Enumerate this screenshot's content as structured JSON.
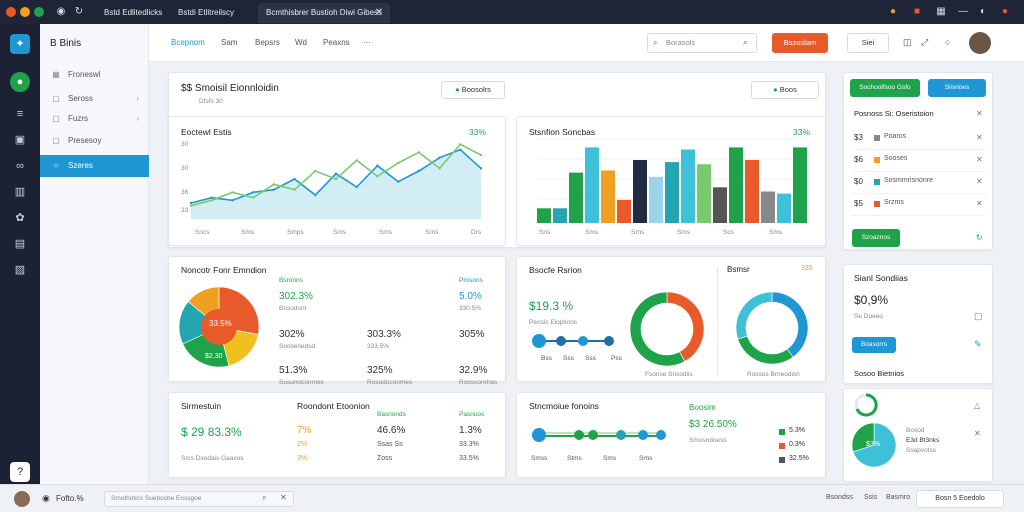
{
  "browser": {
    "tabs": [
      {
        "label": "Bstd Edlitedlicks"
      },
      {
        "label": "Bstdi Etlitreilscy"
      },
      {
        "label": "Bcmthisbrer Bustioh Diwi Gibess"
      }
    ]
  },
  "sidebar": {
    "brand": "B Binis",
    "items": [
      {
        "label": "Froneswl",
        "icon": "grid-icon"
      },
      {
        "label": "Seross",
        "icon": "square-icon",
        "chevron": true
      },
      {
        "label": "Fuzrs",
        "icon": "square-icon",
        "chevron": true
      },
      {
        "label": "Presesoy",
        "icon": "square-icon"
      },
      {
        "label": "Szeres",
        "icon": "circle-icon",
        "active": true
      }
    ]
  },
  "topnav": {
    "links": [
      "Bcepnom",
      "Sam",
      "Bepsrs",
      "Wd",
      "Peaxns"
    ],
    "search_placeholder": "Borasols",
    "primary_button": "Bszoslam",
    "secondary_button": "Siei"
  },
  "card_sales": {
    "title": "$$  Smoisil Eionnloidin",
    "subtitle": "Dfsfs  30",
    "button": "Boosolrs"
  },
  "chart_line": {
    "title": "Eoctewl Estis",
    "pct": "33%",
    "ylabels": [
      "30",
      "30",
      "36",
      "33"
    ],
    "xlabels": [
      "Sncs",
      "Sms",
      "Smps",
      "Sms",
      "Sms",
      "Srns",
      "Drs"
    ]
  },
  "chart_bar": {
    "title": "Stsnfion Soncbas",
    "pct": "33%",
    "button": "Boos",
    "xlabels": [
      "Sns",
      "Sms",
      "Srns",
      "Sms",
      "Scs",
      "Sms"
    ]
  },
  "card_pie": {
    "title": "Noncotr Fonr Emndion",
    "center": "33.5%",
    "inner": "$2.30",
    "metrics": [
      {
        "label": "Bsronns",
        "value": "302.3%",
        "sub": "Bosodonr",
        "color": "#1fa34a"
      },
      {
        "label": "Prosons",
        "value": "5.0%",
        "sub": "330.5%",
        "color": "#1e97d4"
      },
      {
        "label": "",
        "value": "302%",
        "sub": "Soosenedsd",
        "color": "#e85a2a"
      },
      {
        "label": "",
        "value": "303.3%",
        "sub": "333.5%",
        "color": "#333"
      },
      {
        "label": "",
        "value": "51.3%",
        "sub": "Susunoconmes",
        "color": "#333"
      },
      {
        "label": "",
        "value": "325%",
        "sub": "Rosodoconmes",
        "color": "#333"
      },
      {
        "label": "",
        "value": "32.9%",
        "sub": "Roossonrhas",
        "color": "#333"
      },
      {
        "label": "",
        "value": "305%",
        "sub": "",
        "color": "#333"
      }
    ]
  },
  "card_donut": {
    "title": "Bsocfe Rsrion",
    "value": "$19.3 %",
    "value_sub": "Peosis Eloptions",
    "right_title": "Bsmsr",
    "right_pct": "335",
    "donut1_label": "Fsonse Snsodlis",
    "donut1_sub": "Bd",
    "donut2_label": "Rossos Brneodisn",
    "bubble_labels": [
      "Bss",
      "Sss",
      "Sss",
      "Pss"
    ]
  },
  "card_stats": {
    "title": "Sirmestuin",
    "title2": "Roondont Etoonion",
    "value": "$ 29 83.3%",
    "value_color": "#1fa34a",
    "sub": "Srcs  Dsodais  Gaaxos",
    "cols": [
      {
        "head": "",
        "a": "7%",
        "b": "2%",
        "c": "3%"
      },
      {
        "head": "Basnonds",
        "a": "46.6%",
        "b": "Ssas Ss",
        "c": "Zoss"
      },
      {
        "head": "Pasnuos",
        "a": "1.3%",
        "b": "33.3%",
        "c": "33.5%"
      }
    ]
  },
  "card_flow": {
    "title": "Stncmoiue fonoins",
    "value_title": "Boosim",
    "value": "$3 26.50%",
    "value_sub": "Smosndoess",
    "legend": [
      {
        "label": "5.3%",
        "color": "#1fa34a"
      },
      {
        "label": "0.3%",
        "color": "#e85a2a"
      },
      {
        "label": "32.5%",
        "color": "#555"
      }
    ],
    "xlabels": [
      "Smss",
      "Stms",
      "Sms",
      "Srns"
    ]
  },
  "right_panel": {
    "btn_green": "Sochoolfsoo Gsfo",
    "btn_blue": "Siisrioes",
    "list_title": "Posnoss Si: Oseristoion",
    "rows": [
      {
        "n": "$3",
        "label": "Poaros",
        "color": "#888"
      },
      {
        "n": "$6",
        "label": "Sooses",
        "color": "#f0a020"
      },
      {
        "n": "$0",
        "label": "Sosmmrisnonre",
        "color": "#25a5b0"
      },
      {
        "n": "$5",
        "label": "Srzms",
        "color": "#e85a2a"
      }
    ],
    "green_button": "Szoaznos",
    "stat_title": "Sianl Sondiias",
    "stat_value": "$0,9%",
    "stat_sub": "Se  Dueeo",
    "stat_button": "Boasorrs",
    "stat2_title": "Sosoo Bietnios",
    "donut_value": "$3%",
    "donut_label": "Bosod",
    "donut_sub": "E3d  Bt3nks",
    "donut_sub2": "Ssapvotss"
  },
  "footer": {
    "user": "Fofto.%",
    "search": "Smothotics  Suebosbe  Enssgoe",
    "links": [
      "Bsondss",
      "Ssis",
      "Basmro"
    ],
    "button": "Bosn  5  Eoedolo"
  },
  "chart_data": [
    {
      "type": "area",
      "title": "Eoctewl Estis",
      "series": [
        {
          "values": [
            12,
            16,
            14,
            20,
            22,
            30,
            18,
            34,
            24,
            40,
            28,
            36,
            46,
            52,
            38
          ]
        },
        {
          "values": [
            10,
            14,
            20,
            16,
            26,
            22,
            36,
            30,
            44,
            32,
            42,
            50,
            38,
            56,
            48
          ]
        }
      ]
    },
    {
      "type": "bar",
      "title": "Stsnfion Soncbas",
      "values": [
        {
          "v": 14,
          "c": "#1fa34a"
        },
        {
          "v": 14,
          "c": "#25a5b0"
        },
        {
          "v": 48,
          "c": "#1fa34a"
        },
        {
          "v": 72,
          "c": "#3ec0d8"
        },
        {
          "v": 50,
          "c": "#f0a020"
        },
        {
          "v": 22,
          "c": "#e85a2a"
        },
        {
          "v": 60,
          "c": "#1f2b40"
        },
        {
          "v": 44,
          "c": "#9bd3e8"
        },
        {
          "v": 58,
          "c": "#25a5b0"
        },
        {
          "v": 70,
          "c": "#3ec0d8"
        },
        {
          "v": 56,
          "c": "#7bc96f"
        },
        {
          "v": 34,
          "c": "#555"
        },
        {
          "v": 72,
          "c": "#1fa34a"
        },
        {
          "v": 60,
          "c": "#e85a2a"
        },
        {
          "v": 30,
          "c": "#888"
        },
        {
          "v": 28,
          "c": "#3ec0d8"
        },
        {
          "v": 72,
          "c": "#1fa34a"
        }
      ]
    },
    {
      "type": "pie",
      "values": [
        {
          "v": 28,
          "c": "#e85a2a"
        },
        {
          "v": 18,
          "c": "#f0c020"
        },
        {
          "v": 22,
          "c": "#1fa34a"
        },
        {
          "v": 18,
          "c": "#25a5b0"
        },
        {
          "v": 14,
          "c": "#f0a020"
        }
      ]
    },
    {
      "type": "pie",
      "values": [
        {
          "v": 42,
          "c": "#e85a2a"
        },
        {
          "v": 58,
          "c": "#1fa34a"
        }
      ]
    },
    {
      "type": "pie",
      "values": [
        {
          "v": 40,
          "c": "#1e97d4"
        },
        {
          "v": 30,
          "c": "#1fa34a"
        },
        {
          "v": 30,
          "c": "#3ec0d8"
        }
      ]
    },
    {
      "type": "pie",
      "values": [
        {
          "v": 70,
          "c": "#3ec0d8"
        },
        {
          "v": 30,
          "c": "#1fa34a"
        }
      ]
    }
  ]
}
